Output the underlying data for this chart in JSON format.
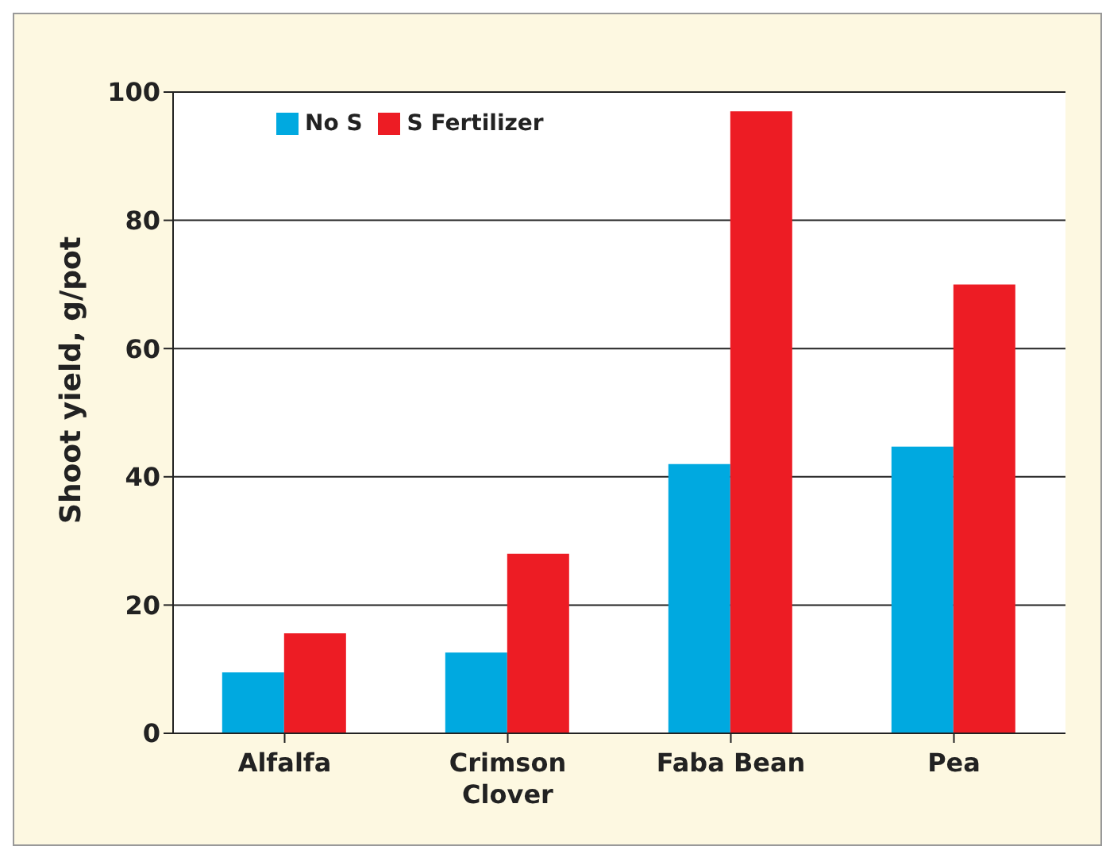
{
  "chart_data": {
    "type": "bar",
    "ylabel": "Shoot yield, g/pot",
    "categories": [
      "Alfalfa",
      "Crimson Clover",
      "Faba Bean",
      "Pea"
    ],
    "series": [
      {
        "name": "No S",
        "color": "#00a9e0",
        "values": [
          9.5,
          12.6,
          42,
          44.7
        ]
      },
      {
        "name": "S Fertilizer",
        "color": "#ed1c24",
        "values": [
          15.6,
          28,
          97,
          70
        ]
      }
    ],
    "ylim": [
      0,
      100
    ],
    "yticks": [
      0,
      20,
      40,
      60,
      80,
      100
    ],
    "grid": "y",
    "legend": "top left"
  }
}
